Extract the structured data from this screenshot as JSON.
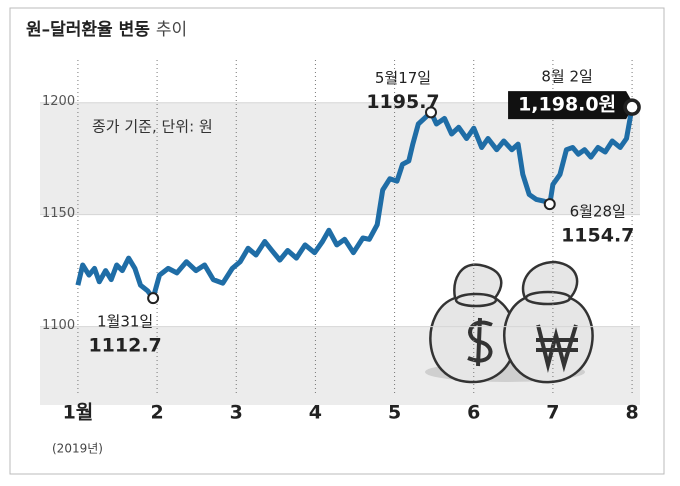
{
  "chart_data": {
    "type": "line",
    "title": "원–달러환율 변동",
    "title_suffix": "추이",
    "note": "종가 기준, 단위: 원",
    "x_note": "(2019년)",
    "xlim": [
      0.9,
      8.1
    ],
    "xticks": [
      {
        "value": 1,
        "label": "1월"
      },
      2,
      3,
      4,
      5,
      6,
      7,
      8
    ],
    "ylim": [
      1065,
      1228
    ],
    "yticks": [
      1100,
      1150,
      1200
    ],
    "series": [
      {
        "color": "#1f6da6",
        "x": [
          1.0,
          1.06,
          1.14,
          1.21,
          1.27,
          1.35,
          1.42,
          1.49,
          1.56,
          1.64,
          1.72,
          1.79,
          1.88,
          1.95,
          2.03,
          2.14,
          2.25,
          2.37,
          2.49,
          2.6,
          2.71,
          2.83,
          2.95,
          3.05,
          3.15,
          3.25,
          3.36,
          3.45,
          3.55,
          3.65,
          3.76,
          3.87,
          3.99,
          4.09,
          4.17,
          4.27,
          4.37,
          4.48,
          4.6,
          4.68,
          4.78,
          4.85,
          4.94,
          5.03,
          5.1,
          5.18,
          5.23,
          5.3,
          5.46,
          5.53,
          5.63,
          5.72,
          5.81,
          5.91,
          6.0,
          6.1,
          6.18,
          6.29,
          6.38,
          6.48,
          6.56,
          6.62,
          6.7,
          6.79,
          6.89,
          6.96,
          7.0,
          7.09,
          7.17,
          7.25,
          7.32,
          7.4,
          7.48,
          7.57,
          7.66,
          7.75,
          7.85,
          7.93,
          8.0
        ],
        "values": [
          1118.5,
          1127.5,
          1123,
          1126,
          1120,
          1125,
          1121,
          1127.5,
          1125,
          1130.6,
          1126,
          1118.5,
          1116,
          1112.7,
          1123,
          1126,
          1124,
          1129,
          1125,
          1127.5,
          1121,
          1119.4,
          1126,
          1129,
          1135,
          1132,
          1138,
          1134,
          1129.7,
          1134,
          1130.6,
          1136.5,
          1133,
          1138,
          1143,
          1136.5,
          1139,
          1133,
          1139.6,
          1139,
          1145.5,
          1161,
          1166,
          1165,
          1172.5,
          1174,
          1181.5,
          1190.5,
          1195.7,
          1190.5,
          1193,
          1186,
          1189,
          1184,
          1188.6,
          1180,
          1184,
          1179,
          1182.9,
          1179,
          1181.5,
          1168,
          1159,
          1156.8,
          1156,
          1154.7,
          1163.5,
          1168,
          1179,
          1180,
          1177,
          1179,
          1175.7,
          1180,
          1178,
          1182.9,
          1180,
          1184,
          1198.0
        ]
      }
    ],
    "annotations": [
      {
        "date": "1월31일",
        "x": 1.95,
        "value": 1112.7
      },
      {
        "date": "5월17일",
        "x": 5.46,
        "value": 1195.7
      },
      {
        "date": "6월28일",
        "x": 6.96,
        "value": 1154.7
      },
      {
        "date": "8월 2일",
        "x": 8.0,
        "value": 1198.0,
        "value_label": "1,198.0원"
      }
    ]
  }
}
